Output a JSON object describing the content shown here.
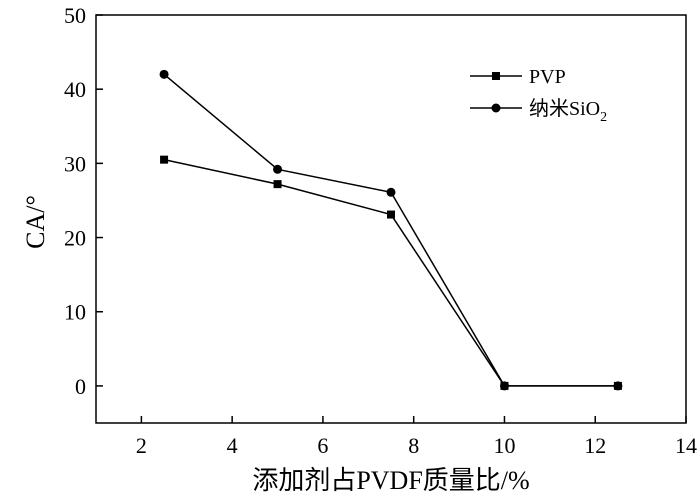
{
  "chart_data": {
    "type": "line",
    "xlabel": "添加剂占PVDF质量比/%",
    "ylabel": "CA/°",
    "xlim": [
      1,
      14
    ],
    "ylim": [
      -5,
      50
    ],
    "xticks": [
      2,
      4,
      6,
      8,
      10,
      12,
      14
    ],
    "yticks": [
      0,
      10,
      20,
      30,
      40,
      50
    ],
    "grid": false,
    "legend_position": "top-right",
    "series": [
      {
        "name": "PVP",
        "marker": "square",
        "color": "#000000",
        "x": [
          2.5,
          5,
          7.5,
          10,
          12.5
        ],
        "y": [
          30.5,
          27.2,
          23.1,
          0,
          0
        ]
      },
      {
        "name": "纳米SiO2",
        "marker": "circle",
        "color": "#000000",
        "x": [
          2.5,
          5,
          7.5,
          10,
          12.5
        ],
        "y": [
          42,
          29.2,
          26.1,
          0,
          0
        ]
      }
    ]
  },
  "legend": {
    "pvp_label": "PVP",
    "sio2_label_main": "纳米SiO",
    "sio2_label_sub": "2"
  }
}
